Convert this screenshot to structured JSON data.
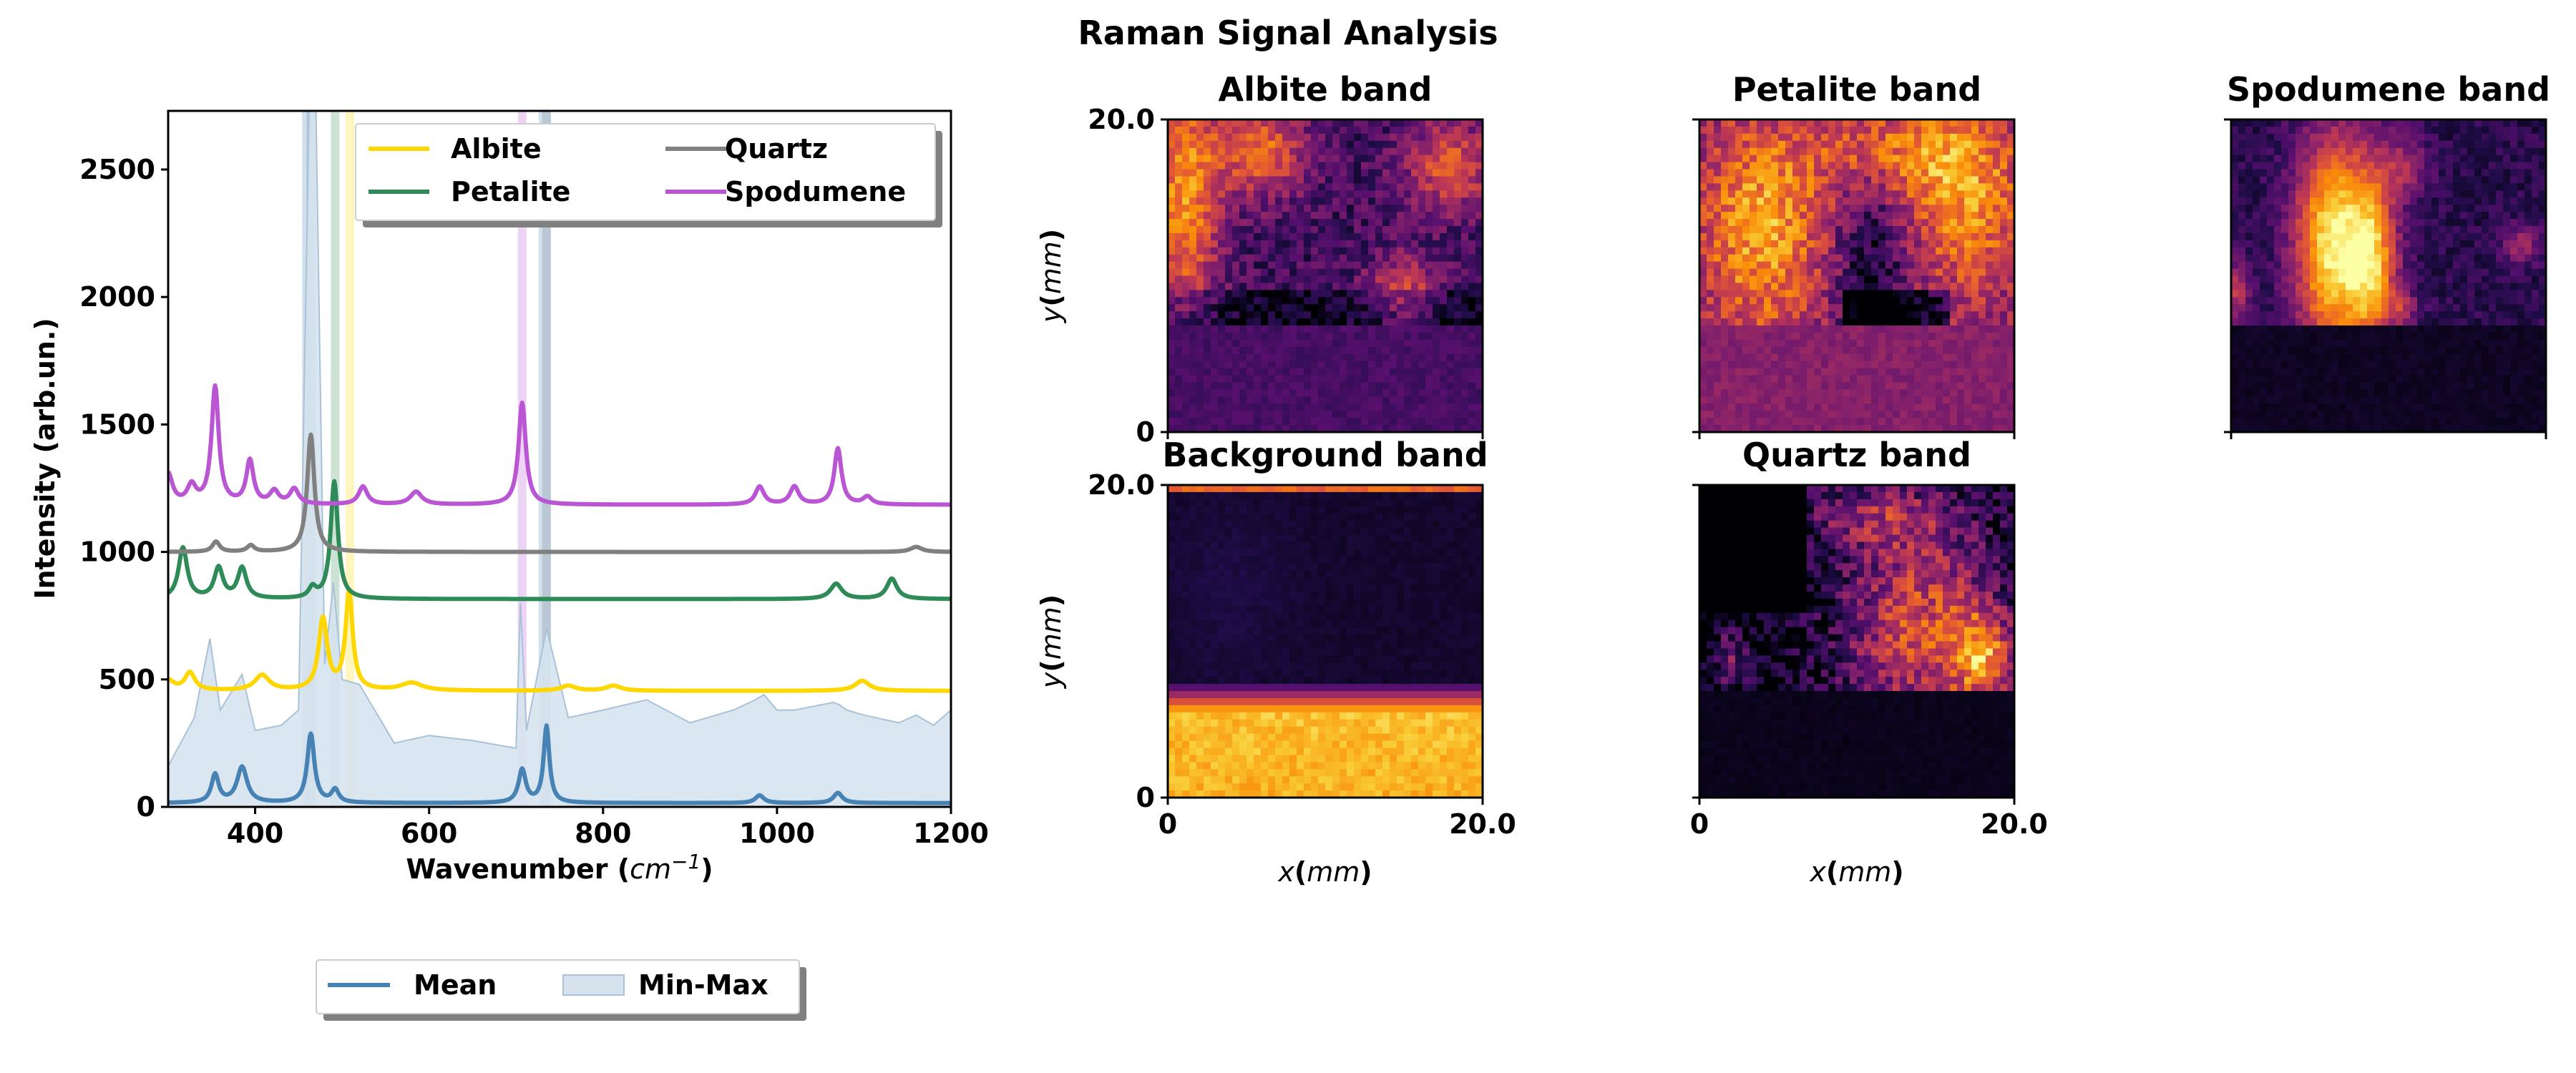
{
  "suptitle": "Raman Signal Analysis",
  "colors": {
    "albite": "#FFD700",
    "petalite": "#2E8B57",
    "quartz": "#808080",
    "spodumene": "#BA55D3",
    "mean": "#4682B4",
    "minmax_fill": "#D6E3EE",
    "minmax_edge": "#A9C2D8"
  },
  "chart_data": [
    {
      "type": "line",
      "title": "",
      "xlabel": "Wavenumber ($cm^-1$)",
      "xlabel_parts": [
        "Wavenumber (",
        "cm",
        "−1",
        ")"
      ],
      "ylabel": "Intensity (arb.un.)",
      "xlim": [
        300,
        1200
      ],
      "ylim": [
        0,
        2730
      ],
      "xticks": [
        400,
        600,
        800,
        1000,
        1200
      ],
      "xtick_labels": [
        "400",
        "600",
        "800",
        "1000",
        "1200"
      ],
      "yticks": [
        0,
        500,
        1000,
        1500,
        2000,
        2500
      ],
      "ytick_labels": [
        "0",
        "500",
        "1000",
        "1500",
        "2000",
        "2500"
      ],
      "grid": false,
      "legend_references": {
        "position": "top-right",
        "ncol": 2,
        "entries": [
          "Albite",
          "Petalite",
          "Quartz",
          "Spodumene"
        ]
      },
      "legend_stats": {
        "position": "below-plot",
        "ncol": 2,
        "entries": [
          "Mean",
          "Min-Max"
        ]
      },
      "band_highlights": [
        {
          "name": "Quartz",
          "x": 464,
          "width": 10,
          "color": "#808080"
        },
        {
          "name": "Quartz",
          "x": 735,
          "width": 10,
          "color": "#808080"
        },
        {
          "name": "Petalite",
          "x": 492,
          "width": 10,
          "color": "#2E8B57"
        },
        {
          "name": "Albite",
          "x": 509,
          "width": 10,
          "color": "#FFD700"
        },
        {
          "name": "Spodumene",
          "x": 707,
          "width": 10,
          "color": "#BA55D3"
        },
        {
          "name": "Background",
          "x": 462,
          "width": 16,
          "color": "#4682B4"
        },
        {
          "name": "Background",
          "x": 733,
          "width": 14,
          "color": "#4682B4"
        }
      ],
      "series": [
        {
          "name": "Albite",
          "color": "#FFD700",
          "baseline": 455,
          "peaks": [
            [
              300,
              40,
              8
            ],
            [
              325,
              70,
              7
            ],
            [
              408,
              60,
              10
            ],
            [
              478,
              280,
              6
            ],
            [
              508,
              380,
              5
            ],
            [
              580,
              30,
              15
            ],
            [
              760,
              20,
              10
            ],
            [
              812,
              20,
              10
            ],
            [
              1098,
              40,
              10
            ]
          ]
        },
        {
          "name": "Petalite",
          "color": "#2E8B57",
          "baseline": 815,
          "peaks": [
            [
              317,
              200,
              6
            ],
            [
              358,
              120,
              6
            ],
            [
              385,
              120,
              6
            ],
            [
              466,
              40,
              5
            ],
            [
              491,
              460,
              5
            ],
            [
              1068,
              60,
              8
            ],
            [
              1132,
              80,
              7
            ]
          ]
        },
        {
          "name": "Quartz",
          "color": "#808080",
          "baseline": 1000,
          "peaks": [
            [
              355,
              40,
              5
            ],
            [
              395,
              25,
              5
            ],
            [
              464,
              460,
              5
            ],
            [
              1160,
              20,
              8
            ]
          ]
        },
        {
          "name": "Spodumene",
          "color": "#BA55D3",
          "baseline": 1185,
          "peaks": [
            [
              300,
              120,
              6
            ],
            [
              327,
              70,
              6
            ],
            [
              354,
              460,
              5
            ],
            [
              394,
              170,
              5
            ],
            [
              422,
              50,
              6
            ],
            [
              445,
              60,
              6
            ],
            [
              524,
              70,
              6
            ],
            [
              585,
              50,
              8
            ],
            [
              707,
              400,
              5
            ],
            [
              980,
              70,
              6
            ],
            [
              1020,
              70,
              6
            ],
            [
              1070,
              220,
              5
            ],
            [
              1104,
              30,
              6
            ]
          ]
        },
        {
          "name": "Mean",
          "color": "#4682B4",
          "baseline": 15,
          "peaks": [
            [
              354,
              110,
              5
            ],
            [
              385,
              140,
              7
            ],
            [
              464,
              270,
              5
            ],
            [
              492,
              50,
              5
            ],
            [
              707,
              130,
              5
            ],
            [
              735,
              300,
              4
            ],
            [
              980,
              30,
              6
            ],
            [
              1070,
              40,
              6
            ]
          ]
        }
      ],
      "minmax_upper": [
        [
          300,
          160
        ],
        [
          330,
          350
        ],
        [
          348,
          660
        ],
        [
          360,
          380
        ],
        [
          385,
          520
        ],
        [
          400,
          300
        ],
        [
          430,
          320
        ],
        [
          450,
          380
        ],
        [
          462,
          2730
        ],
        [
          470,
          2730
        ],
        [
          480,
          560
        ],
        [
          490,
          880
        ],
        [
          500,
          500
        ],
        [
          520,
          480
        ],
        [
          560,
          250
        ],
        [
          600,
          280
        ],
        [
          650,
          260
        ],
        [
          700,
          230
        ],
        [
          705,
          800
        ],
        [
          712,
          300
        ],
        [
          735,
          700
        ],
        [
          760,
          350
        ],
        [
          800,
          380
        ],
        [
          850,
          420
        ],
        [
          900,
          330
        ],
        [
          950,
          380
        ],
        [
          975,
          420
        ],
        [
          985,
          440
        ],
        [
          1000,
          380
        ],
        [
          1020,
          380
        ],
        [
          1065,
          410
        ],
        [
          1072,
          400
        ],
        [
          1080,
          380
        ],
        [
          1100,
          360
        ],
        [
          1140,
          330
        ],
        [
          1160,
          360
        ],
        [
          1180,
          320
        ],
        [
          1200,
          380
        ]
      ]
    },
    {
      "type": "heatmap",
      "panels": [
        {
          "title": "Albite band",
          "key": "albite"
        },
        {
          "title": "Petalite band",
          "key": "petalite"
        },
        {
          "title": "Spodumene band",
          "key": "spodumene"
        },
        {
          "title": "Background band",
          "key": "background"
        },
        {
          "title": "Quartz band",
          "key": "quartz"
        }
      ],
      "colormap": "inferno",
      "xlabel": "x(mm)",
      "ylabel": "y(mm)",
      "xlim": [
        0,
        20.0
      ],
      "ylim": [
        0,
        20.0
      ],
      "tick_labels": [
        "0",
        "20.0"
      ],
      "layout_note_rows": 2
    }
  ]
}
